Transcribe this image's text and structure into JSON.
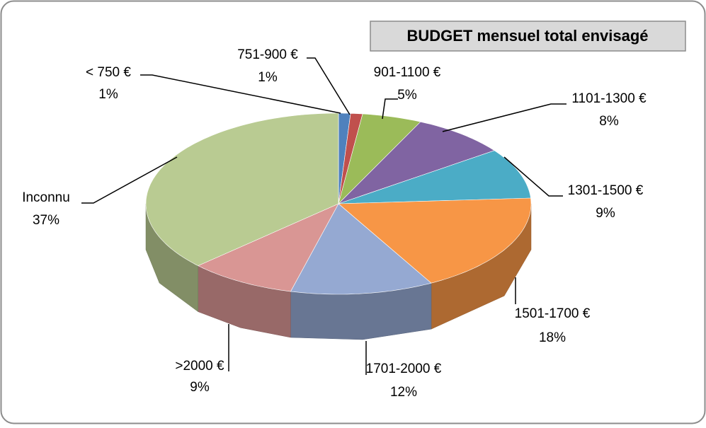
{
  "chart_data": {
    "type": "pie",
    "title": "BUDGET mensuel total envisagé",
    "categories": [
      "< 750 €",
      "751-900 €",
      "901-1100 €",
      "1101-1300 €",
      "1301-1500 €",
      "1501-1700 €",
      "1701-2000 €",
      ">2000 €",
      "Inconnu"
    ],
    "values": [
      1,
      1,
      5,
      8,
      9,
      18,
      12,
      9,
      37
    ],
    "value_labels": [
      "1%",
      "1%",
      "5%",
      "8%",
      "9%",
      "18%",
      "12%",
      "9%",
      "37%"
    ],
    "colors": [
      "#4f81bd",
      "#c0504d",
      "#9bbb59",
      "#8064a2",
      "#4bacc6",
      "#f79646",
      "#95a9d2",
      "#d99694",
      "#b9cb92"
    ]
  }
}
